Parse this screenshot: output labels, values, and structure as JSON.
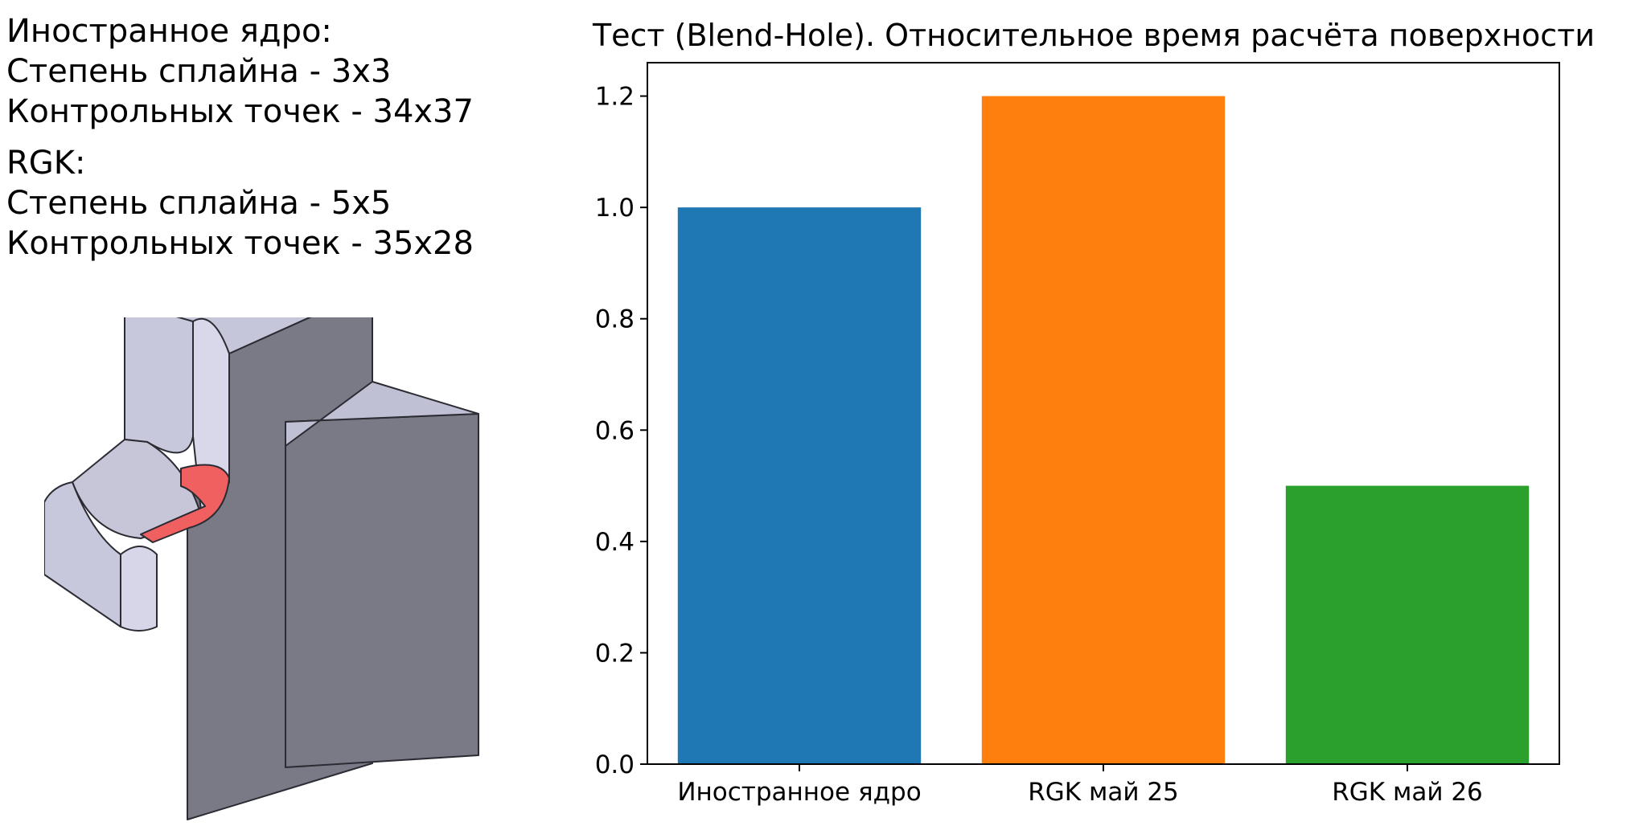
{
  "info": {
    "foreign_kernel": {
      "heading": "Иностранное ядро:",
      "degree": "Степень сплайна - 3x3",
      "control_points": "Контрольных точек - 34x37"
    },
    "rgk": {
      "heading": "RGK:",
      "degree": "Степень сплайна - 5x5",
      "control_points": "Контрольных точек - 35x28"
    }
  },
  "model": {
    "face_color": "#c8c8dc",
    "side_color": "#7a7a86",
    "highlight_color": "#f06060"
  },
  "chart_data": {
    "type": "bar",
    "title": "Тест (Blend-Hole). Относительное время расчёта поверхности",
    "categories": [
      "Иностранное ядро",
      "RGK май 25",
      "RGK май 26"
    ],
    "values": [
      1.0,
      1.2,
      0.5
    ],
    "colors": [
      "#1f77b4",
      "#ff7f0e",
      "#2ca02c"
    ],
    "yticks": [
      "0.0",
      "0.2",
      "0.4",
      "0.6",
      "0.8",
      "1.0",
      "1.2"
    ],
    "ylim": [
      0,
      1.26
    ],
    "xlabel": "",
    "ylabel": "",
    "grid": false
  }
}
